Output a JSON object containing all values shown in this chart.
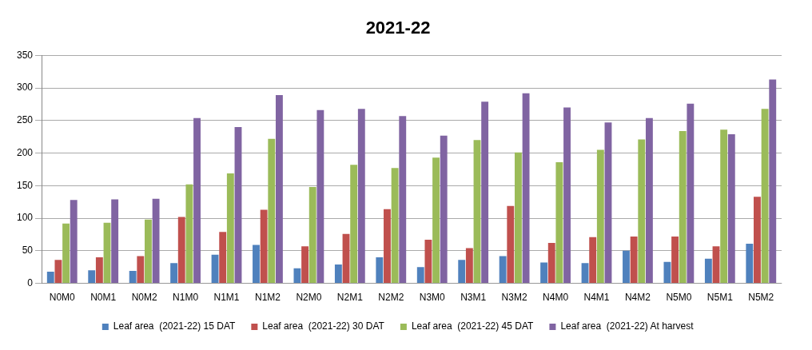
{
  "chart_data": {
    "type": "bar",
    "title": "2021-22",
    "categories": [
      "N0M0",
      "N0M1",
      "N0M2",
      "N1M0",
      "N1M1",
      "N1M2",
      "N2M0",
      "N2M1",
      "N2M2",
      "N3M0",
      "N3M1",
      "N3M2",
      "N4M0",
      "N4M1",
      "N4M2",
      "N5M0",
      "N5M1",
      "N5M2"
    ],
    "series": [
      {
        "name": "Leaf area  (2021-22) 15 DAT",
        "color": "#4f81bd",
        "values": [
          18,
          20,
          19,
          31,
          44,
          59,
          23,
          29,
          40,
          25,
          36,
          42,
          32,
          31,
          50,
          33,
          38,
          61
        ]
      },
      {
        "name": "Leaf area  (2021-22) 30 DAT",
        "color": "#c0504d",
        "values": [
          36,
          40,
          42,
          102,
          79,
          113,
          57,
          76,
          114,
          67,
          54,
          119,
          62,
          71,
          72,
          72,
          57,
          133
        ]
      },
      {
        "name": "Leaf area  (2021-22) 45 DAT",
        "color": "#9bbb59",
        "values": [
          92,
          93,
          98,
          152,
          169,
          222,
          148,
          182,
          177,
          193,
          220,
          201,
          186,
          205,
          221,
          234,
          236,
          268
        ]
      },
      {
        "name": "Leaf area  (2021-22) At harvest",
        "color": "#8064a2",
        "values": [
          128,
          129,
          130,
          254,
          240,
          289,
          266,
          268,
          257,
          227,
          279,
          292,
          270,
          247,
          254,
          276,
          229,
          313
        ]
      }
    ],
    "ylim": [
      0,
      350
    ],
    "yticks": [
      0,
      50,
      100,
      150,
      200,
      250,
      300,
      350
    ],
    "grid": "y",
    "legend": "bottom"
  }
}
